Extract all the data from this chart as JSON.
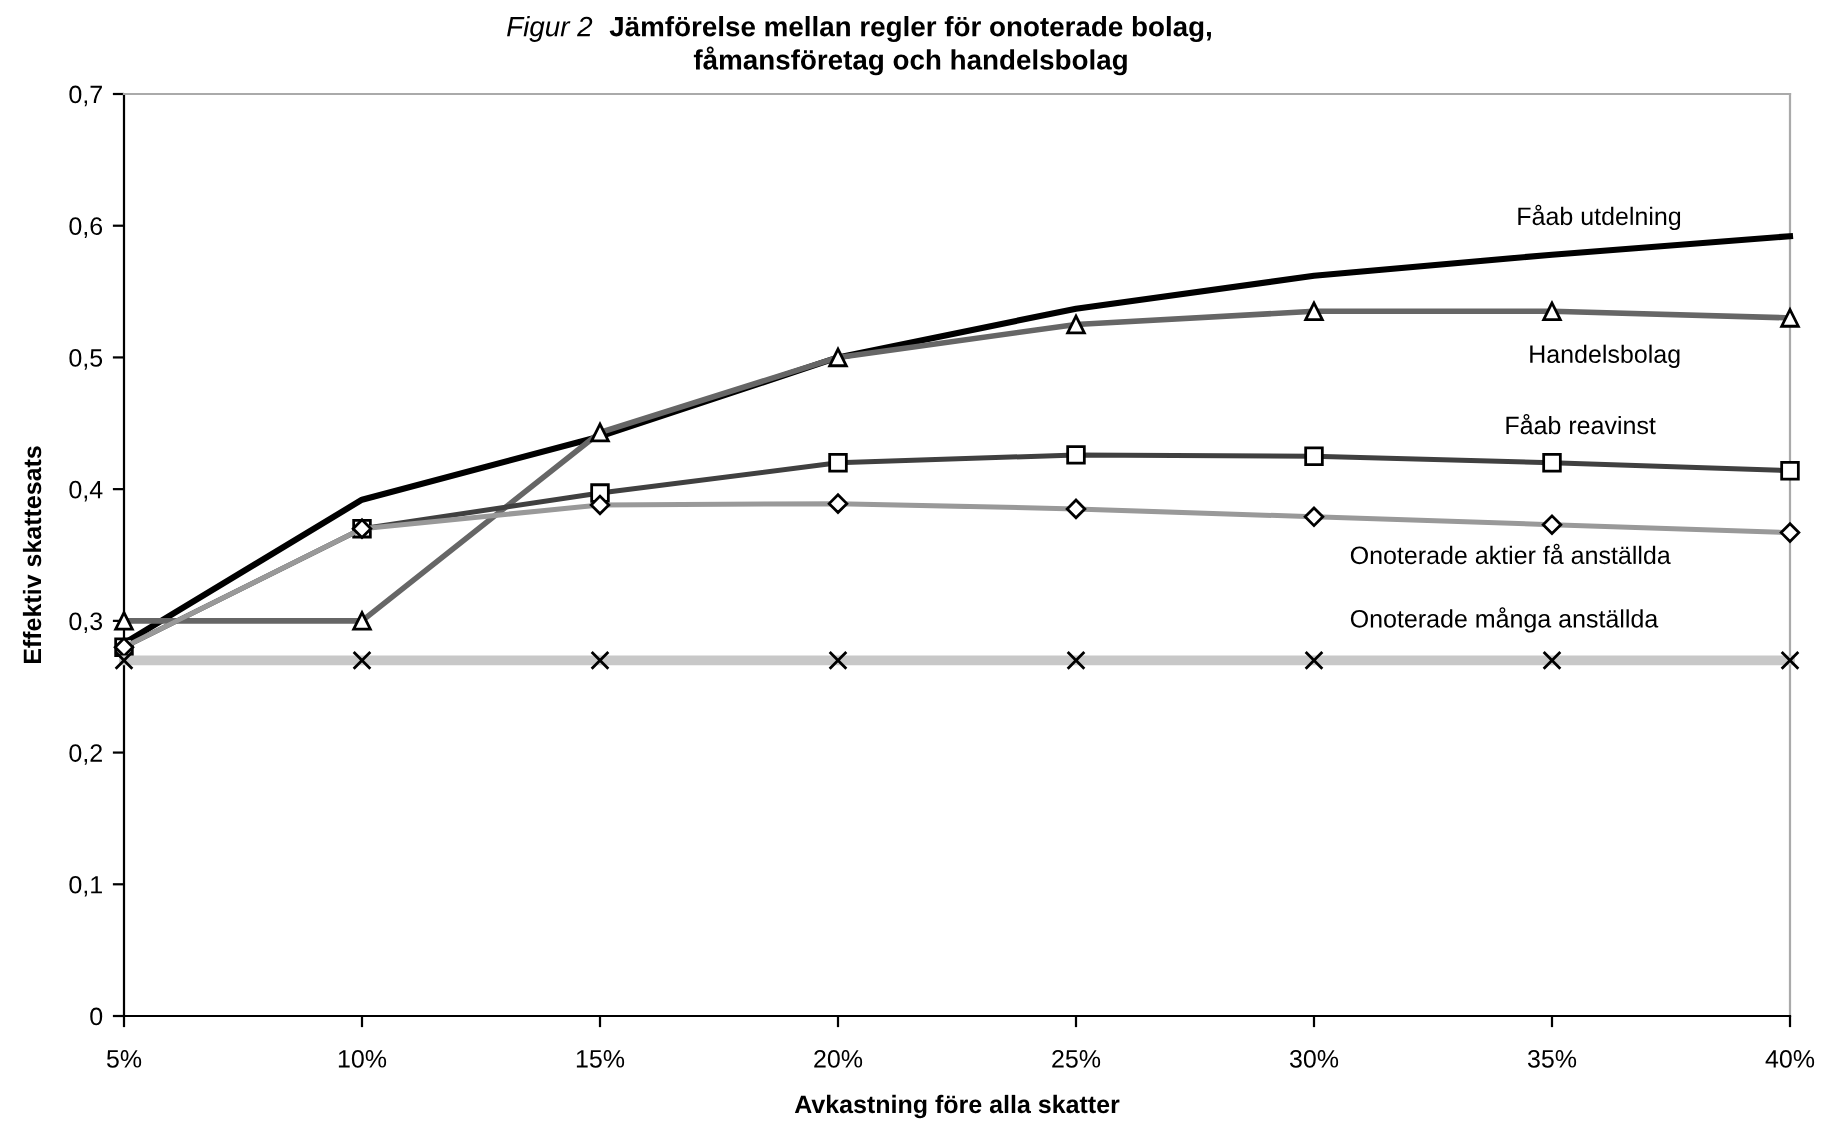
{
  "chart_data": {
    "type": "line",
    "subtitle": "Figur 2",
    "title": "Jämförelse mellan regler för onoterade bolag,\nfåmansföretag och handelsbolag",
    "xlabel": "Avkastning före alla skatter",
    "ylabel": "Effektiv skattesats",
    "categories": [
      "5%",
      "10%",
      "15%",
      "20%",
      "25%",
      "30%",
      "35%",
      "40%"
    ],
    "ylim": [
      0,
      0.7
    ],
    "yticks": [
      {
        "value": 0,
        "label": "0"
      },
      {
        "value": 0.1,
        "label": "0,1"
      },
      {
        "value": 0.2,
        "label": "0,2"
      },
      {
        "value": 0.3,
        "label": "0,3"
      },
      {
        "value": 0.4,
        "label": "0,4"
      },
      {
        "value": 0.5,
        "label": "0,5"
      },
      {
        "value": 0.6,
        "label": "0,6"
      },
      {
        "value": 0.7,
        "label": "0,7"
      }
    ],
    "grid": false,
    "legend": false,
    "series": [
      {
        "name": "Fåab utdelning",
        "color": "#000000",
        "marker": "none",
        "values": [
          0.283,
          0.392,
          0.44,
          0.5,
          0.537,
          0.562,
          0.578,
          0.592
        ]
      },
      {
        "name": "Handelsbolag",
        "color": "#666666",
        "marker": "triangle",
        "values": [
          0.3,
          0.3,
          0.443,
          0.5,
          0.525,
          0.535,
          0.535,
          0.53
        ]
      },
      {
        "name": "Fåab reavinst",
        "color": "#404040",
        "marker": "square",
        "values": [
          0.28,
          0.37,
          0.397,
          0.42,
          0.426,
          0.425,
          0.42,
          0.414
        ]
      },
      {
        "name": "Onoterade aktier få anställda",
        "color": "#999999",
        "marker": "diamond",
        "values": [
          0.28,
          0.37,
          0.388,
          0.389,
          0.385,
          0.379,
          0.373,
          0.367
        ]
      },
      {
        "name": "Onoterade många anställda",
        "color": "#c8c8c8",
        "marker": "cross",
        "values": [
          0.27,
          0.27,
          0.27,
          0.27,
          0.27,
          0.27,
          0.27,
          0.27
        ]
      }
    ]
  }
}
